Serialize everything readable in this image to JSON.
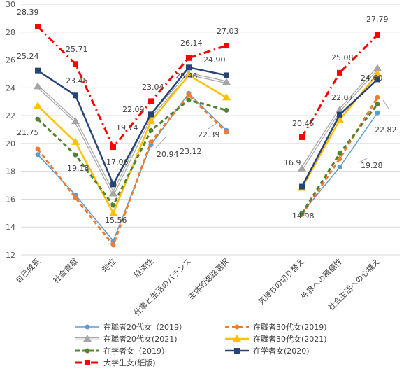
{
  "chart_data": {
    "type": "line",
    "categories": [
      "自己成長",
      "社会貢献",
      "地位",
      "経済性",
      "仕事と生活のバランス",
      "主体的進路選択",
      "気持ちの切り替え",
      "外界への積極性",
      "社会生活への心構え"
    ],
    "ylim": [
      12,
      30
    ],
    "yticks": [
      "12",
      "14",
      "16",
      "18",
      "20",
      "22",
      "24",
      "26",
      "28",
      "30"
    ],
    "grid": "horizontal",
    "legend_position": "bottom",
    "series": [
      {
        "name": "在職者20代女（2019）",
        "color": "#5B9BD5",
        "style": "solid-thin",
        "marker": "circle",
        "values": [
          19.2,
          16.3,
          13.0,
          19.9,
          23.6,
          20.94,
          15.0,
          18.3,
          22.2
        ]
      },
      {
        "name": "在職者30代女(2019)",
        "color": "#ED7D31",
        "style": "dash",
        "marker": "circle",
        "values": [
          19.6,
          16.1,
          12.7,
          20.1,
          23.5,
          20.8,
          14.9,
          18.9,
          23.3
        ]
      },
      {
        "name": "在職者20代女(2021)",
        "color": "#A5A5A5",
        "style": "double",
        "marker": "triangle",
        "values": [
          24.1,
          21.6,
          16.4,
          22.0,
          25.0,
          24.4,
          18.2,
          22.4,
          25.4
        ]
      },
      {
        "name": "在職者30代女(2021)",
        "color": "#FFC000",
        "style": "solid",
        "marker": "triangle",
        "values": [
          22.7,
          20.1,
          15.0,
          21.6,
          24.9,
          23.3,
          16.8,
          21.7,
          25.0
        ]
      },
      {
        "name": "在学者女（2019）",
        "color": "#548235",
        "style": "dash",
        "marker": "circle",
        "values": [
          21.75,
          19.18,
          15.56,
          20.94,
          23.12,
          22.39,
          14.98,
          19.28,
          22.82
        ]
      },
      {
        "name": "在学者女(2020)",
        "color": "#264478",
        "style": "solid",
        "marker": "square",
        "values": [
          25.24,
          23.45,
          17.06,
          22.09,
          25.46,
          24.9,
          16.9,
          22.07,
          24.6
        ]
      },
      {
        "name": "大学生女(紙版)",
        "color": "#FF0000",
        "style": "dashdot",
        "marker": "square",
        "values": [
          28.39,
          25.71,
          19.74,
          23.04,
          26.14,
          27.03,
          20.45,
          25.08,
          27.79
        ]
      }
    ],
    "data_labels": [
      "28.39",
      "25.24",
      "25.71",
      "23.45",
      "21.75",
      "19.18",
      "19.74",
      "17.06",
      "15.56",
      "23.04",
      "22.09",
      "20.94",
      "26.14",
      "25.46",
      "23.12",
      "27.03",
      "24.90",
      "22.39",
      "20.45",
      "16.9",
      "14.98",
      "25.08",
      "22.07",
      "19.28",
      "27.79",
      "24.60",
      "22.82"
    ]
  }
}
